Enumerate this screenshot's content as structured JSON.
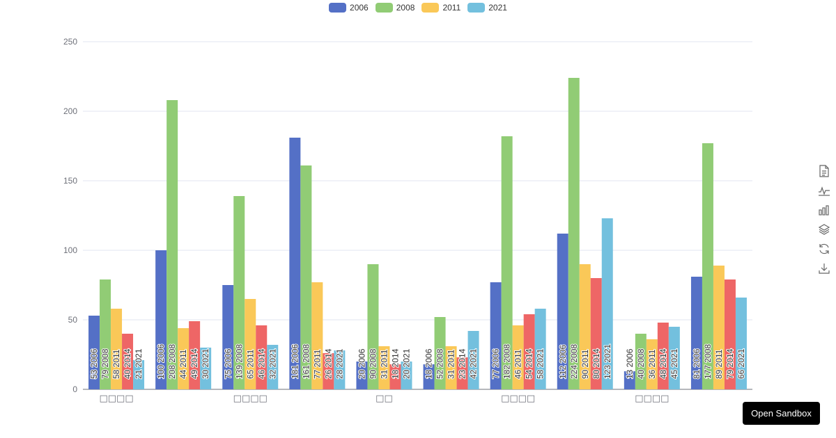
{
  "chart_data": {
    "type": "bar",
    "title": "",
    "xlabel": "",
    "ylabel": "",
    "ylim": [
      0,
      250
    ],
    "yticks": [
      0,
      50,
      100,
      150,
      200,
      250
    ],
    "grid": true,
    "legend_position": "top-center",
    "categories": [
      "□□□□",
      "",
      "□□□□",
      "",
      "□□",
      "",
      "□□□□",
      "",
      "□□□□",
      ""
    ],
    "series": [
      {
        "name": "2006",
        "label": "2006",
        "color": "#5470c6",
        "values": [
          53,
          100,
          75,
          181,
          20,
          18,
          77,
          112,
          13,
          81
        ]
      },
      {
        "name": "2008",
        "label": "2008",
        "color": "#91cc75",
        "values": [
          79,
          208,
          139,
          161,
          90,
          52,
          182,
          224,
          40,
          177
        ]
      },
      {
        "name": "2011",
        "label": "2011",
        "color": "#fac858",
        "values": [
          58,
          44,
          65,
          77,
          31,
          31,
          46,
          90,
          36,
          89
        ]
      },
      {
        "name": "2014",
        "label": "2014",
        "color": "#ee6666",
        "values": [
          40,
          49,
          46,
          26,
          18,
          23,
          54,
          80,
          48,
          79
        ]
      },
      {
        "name": "2021",
        "label": "2021",
        "color": "#73c0de",
        "values": [
          21,
          30,
          32,
          28,
          20,
          42,
          58,
          123,
          45,
          66
        ]
      }
    ]
  },
  "legend": {
    "items": [
      {
        "label": "2006",
        "color": "#5470c6"
      },
      {
        "label": "2008",
        "color": "#91cc75"
      },
      {
        "label": "2011",
        "color": "#fac858"
      },
      {
        "label": "2021",
        "color": "#73c0de"
      }
    ]
  },
  "toolbox": {
    "items": [
      "data-view-icon",
      "line-chart-icon",
      "bar-chart-icon",
      "stack-icon",
      "restore-icon",
      "save-image-icon"
    ]
  },
  "sandbox_button": {
    "label": "Open Sandbox"
  }
}
